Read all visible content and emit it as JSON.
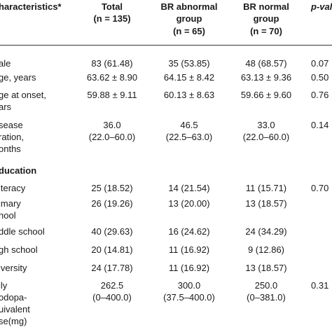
{
  "header": {
    "col1": "haracteristics*",
    "total": "Total",
    "total_n": "(n = 135)",
    "abn": "BR abnormal",
    "abn2": "group",
    "abn_n": "(n = 65)",
    "norm": "BR normal",
    "norm2": "group",
    "norm_n": "(n = 70)",
    "pval": "p-valu"
  },
  "rows": [
    {
      "l1": "ale",
      "l2": "",
      "l3": "",
      "total": [
        "83 (61.48)"
      ],
      "abn": [
        "35 (53.85)"
      ],
      "norm": [
        "48 (68.57)"
      ],
      "p": "0.07"
    },
    {
      "l1": "ge, years",
      "l2": "",
      "l3": "",
      "total": [
        "63.62 ± 8.90"
      ],
      "abn": [
        "64.15 ± 8.42"
      ],
      "norm": [
        "63.13 ± 9.36"
      ],
      "p": "0.50"
    },
    {
      "l1": "ge at onset,",
      "l2": "ars",
      "l3": "",
      "total": [
        "59.88 ± 9.11"
      ],
      "abn": [
        "60.13 ± 8.63"
      ],
      "norm": [
        "59.66 ± 9.60"
      ],
      "p": "0.76"
    },
    {
      "l1": "sease",
      "l2": "ration,",
      "l3": "onths",
      "total": [
        "36.0",
        "(22.0–60.0)"
      ],
      "abn": [
        "46.5",
        "(22.5–63.0)"
      ],
      "norm": [
        "33.0",
        "(22.0–60.0)"
      ],
      "p": "0.14"
    },
    {
      "l1": "ducation",
      "l2": "",
      "l3": "",
      "section": true,
      "total": [],
      "abn": [],
      "norm": [],
      "p": ""
    },
    {
      "l1": "iteracy",
      "l2": "",
      "l3": "",
      "total": [
        "25 (18.52)"
      ],
      "abn": [
        "14 (21.54)"
      ],
      "norm": [
        "11 (15.71)"
      ],
      "p": "0.70"
    },
    {
      "l1": "imary",
      "l2": "hool",
      "l3": "",
      "total": [
        "26 (19.26)"
      ],
      "abn": [
        "13 (20.00)"
      ],
      "norm": [
        "13 (18.57)"
      ],
      "p": ""
    },
    {
      "l1": "ddle school",
      "l2": "",
      "l3": "",
      "total": [
        "40 (29.63)"
      ],
      "abn": [
        "16 (24.62)"
      ],
      "norm": [
        "24 (34.29)"
      ],
      "p": ""
    },
    {
      "l1": "gh school",
      "l2": "",
      "l3": "",
      "total": [
        "20 (14.81)"
      ],
      "abn": [
        "11 (16.92)"
      ],
      "norm": [
        "9 (12.86)"
      ],
      "p": ""
    },
    {
      "l1": "iversity",
      "l2": "",
      "l3": "",
      "total": [
        "24 (17.78)"
      ],
      "abn": [
        "11 (16.92)"
      ],
      "norm": [
        "13 (18.57)"
      ],
      "p": ""
    },
    {
      "l1": "ily",
      "l2": "odopa-",
      "l3": "uivalent",
      "l4": "se(mg)",
      "total": [
        "262.5",
        "(0–400.0)"
      ],
      "abn": [
        "300.0",
        "(37.5–400.0)"
      ],
      "norm": [
        "250.0",
        "(0–381.0)"
      ],
      "p": "0.31"
    }
  ]
}
